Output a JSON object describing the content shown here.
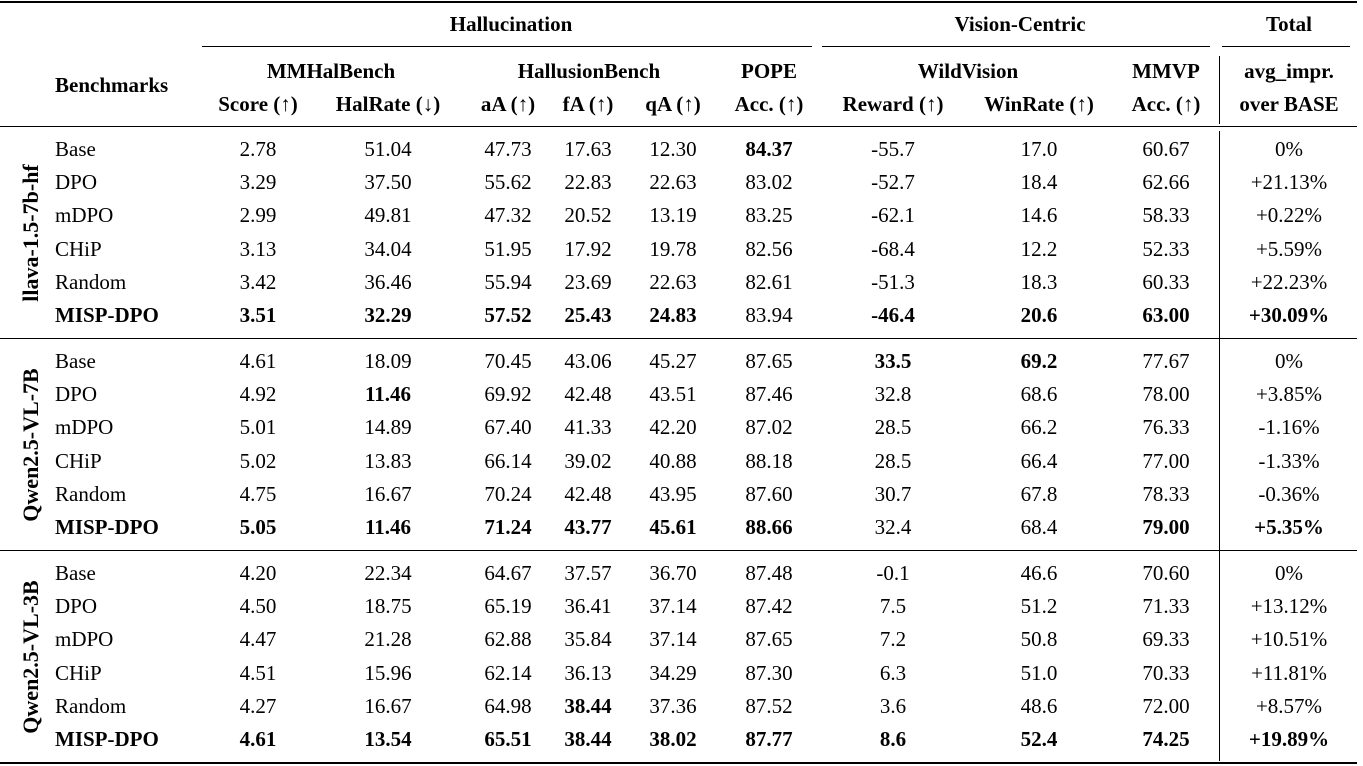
{
  "groups": {
    "hallucination": "Hallucination",
    "vision_centric": "Vision-Centric",
    "total": "Total"
  },
  "benchmarks_label": "Benchmarks",
  "subgroups": {
    "mmhal": "MMHalBench",
    "hallusion": "HallusionBench",
    "pope": "POPE",
    "wildvision": "WildVision",
    "mmvp": "MMVP",
    "avg": "avg_impr."
  },
  "columns": [
    "Score (↑)",
    "HalRate (↓)",
    "aA (↑)",
    "fA (↑)",
    "qA (↑)",
    "Acc. (↑)",
    "Reward (↑)",
    "WinRate (↑)",
    "Acc. (↑)",
    "over BASE"
  ],
  "blocks": [
    {
      "model": "llava-1.5-7b-hf",
      "rows": [
        {
          "method": "Base",
          "values": [
            "2.78",
            "51.04",
            "47.73",
            "17.63",
            "12.30",
            "84.37",
            "-55.7",
            "17.0",
            "60.67",
            "0%"
          ],
          "bold": [
            5
          ]
        },
        {
          "method": "DPO",
          "values": [
            "3.29",
            "37.50",
            "55.62",
            "22.83",
            "22.63",
            "83.02",
            "-52.7",
            "18.4",
            "62.66",
            "+21.13%"
          ],
          "bold": []
        },
        {
          "method": "mDPO",
          "values": [
            "2.99",
            "49.81",
            "47.32",
            "20.52",
            "13.19",
            "83.25",
            "-62.1",
            "14.6",
            "58.33",
            "+0.22%"
          ],
          "bold": []
        },
        {
          "method": "CHiP",
          "values": [
            "3.13",
            "34.04",
            "51.95",
            "17.92",
            "19.78",
            "82.56",
            "-68.4",
            "12.2",
            "52.33",
            "+5.59%"
          ],
          "bold": []
        },
        {
          "method": "Random",
          "values": [
            "3.42",
            "36.46",
            "55.94",
            "23.69",
            "22.63",
            "82.61",
            "-51.3",
            "18.3",
            "60.33",
            "+22.23%"
          ],
          "bold": []
        },
        {
          "method": "MISP-DPO",
          "method_bold": true,
          "values": [
            "3.51",
            "32.29",
            "57.52",
            "25.43",
            "24.83",
            "83.94",
            "-46.4",
            "20.6",
            "63.00",
            "+30.09%"
          ],
          "bold": [
            0,
            1,
            2,
            3,
            4,
            6,
            7,
            8,
            9
          ]
        }
      ]
    },
    {
      "model": "Qwen2.5-VL-7B",
      "rows": [
        {
          "method": "Base",
          "values": [
            "4.61",
            "18.09",
            "70.45",
            "43.06",
            "45.27",
            "87.65",
            "33.5",
            "69.2",
            "77.67",
            "0%"
          ],
          "bold": [
            6,
            7
          ]
        },
        {
          "method": "DPO",
          "values": [
            "4.92",
            "11.46",
            "69.92",
            "42.48",
            "43.51",
            "87.46",
            "32.8",
            "68.6",
            "78.00",
            "+3.85%"
          ],
          "bold": [
            1
          ]
        },
        {
          "method": "mDPO",
          "values": [
            "5.01",
            "14.89",
            "67.40",
            "41.33",
            "42.20",
            "87.02",
            "28.5",
            "66.2",
            "76.33",
            "-1.16%"
          ],
          "bold": []
        },
        {
          "method": "CHiP",
          "values": [
            "5.02",
            "13.83",
            "66.14",
            "39.02",
            "40.88",
            "88.18",
            "28.5",
            "66.4",
            "77.00",
            "-1.33%"
          ],
          "bold": []
        },
        {
          "method": "Random",
          "values": [
            "4.75",
            "16.67",
            "70.24",
            "42.48",
            "43.95",
            "87.60",
            "30.7",
            "67.8",
            "78.33",
            "-0.36%"
          ],
          "bold": []
        },
        {
          "method": "MISP-DPO",
          "method_bold": true,
          "values": [
            "5.05",
            "11.46",
            "71.24",
            "43.77",
            "45.61",
            "88.66",
            "32.4",
            "68.4",
            "79.00",
            "+5.35%"
          ],
          "bold": [
            0,
            1,
            2,
            3,
            4,
            5,
            8,
            9
          ]
        }
      ]
    },
    {
      "model": "Qwen2.5-VL-3B",
      "rows": [
        {
          "method": "Base",
          "values": [
            "4.20",
            "22.34",
            "64.67",
            "37.57",
            "36.70",
            "87.48",
            "-0.1",
            "46.6",
            "70.60",
            "0%"
          ],
          "bold": []
        },
        {
          "method": "DPO",
          "values": [
            "4.50",
            "18.75",
            "65.19",
            "36.41",
            "37.14",
            "87.42",
            "7.5",
            "51.2",
            "71.33",
            "+13.12%"
          ],
          "bold": []
        },
        {
          "method": "mDPO",
          "values": [
            "4.47",
            "21.28",
            "62.88",
            "35.84",
            "37.14",
            "87.65",
            "7.2",
            "50.8",
            "69.33",
            "+10.51%"
          ],
          "bold": []
        },
        {
          "method": "CHiP",
          "values": [
            "4.51",
            "15.96",
            "62.14",
            "36.13",
            "34.29",
            "87.30",
            "6.3",
            "51.0",
            "70.33",
            "+11.81%"
          ],
          "bold": []
        },
        {
          "method": "Random",
          "values": [
            "4.27",
            "16.67",
            "64.98",
            "38.44",
            "37.36",
            "87.52",
            "3.6",
            "48.6",
            "72.00",
            "+8.57%"
          ],
          "bold": [
            3
          ]
        },
        {
          "method": "MISP-DPO",
          "method_bold": true,
          "values": [
            "4.61",
            "13.54",
            "65.51",
            "38.44",
            "38.02",
            "87.77",
            "8.6",
            "52.4",
            "74.25",
            "+19.89%"
          ],
          "bold": [
            0,
            1,
            2,
            3,
            4,
            5,
            6,
            7,
            8,
            9
          ]
        }
      ]
    }
  ]
}
